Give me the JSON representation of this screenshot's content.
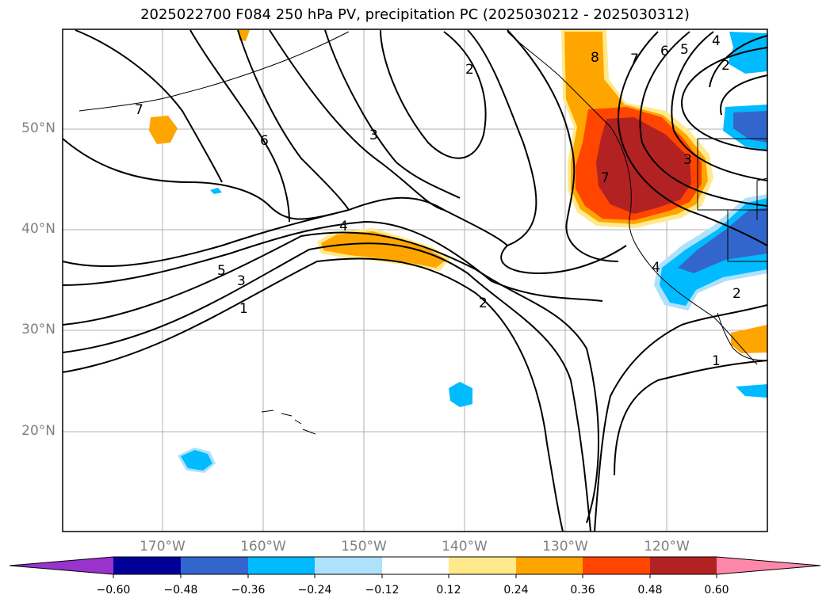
{
  "title": "2025022700 F084 250 hPa PV, precipitation PC (2025030212 - 2025030312)",
  "lat_labels": [
    "50°N",
    "40°N",
    "30°N",
    "20°N"
  ],
  "lon_labels": [
    "170°W",
    "160°W",
    "150°W",
    "140°W",
    "130°W",
    "120°W"
  ],
  "contour_labels": [
    "7",
    "6",
    "3",
    "2",
    "4",
    "5",
    "3",
    "1",
    "2",
    "8",
    "7",
    "6",
    "5",
    "4",
    "2",
    "3",
    "7",
    "4",
    "2",
    "1"
  ],
  "colorbar": {
    "ticks": [
      "−0.60",
      "−0.48",
      "−0.36",
      "−0.24",
      "−0.12",
      "0.12",
      "0.24",
      "0.36",
      "0.48",
      "0.60"
    ],
    "colors": [
      "#9933cc",
      "#000099",
      "#3366cc",
      "#00bbff",
      "#aee1fb",
      "#ffffff",
      "#ffe98a",
      "#ffa500",
      "#ff4500",
      "#b22222",
      "#ff88aa"
    ]
  }
}
